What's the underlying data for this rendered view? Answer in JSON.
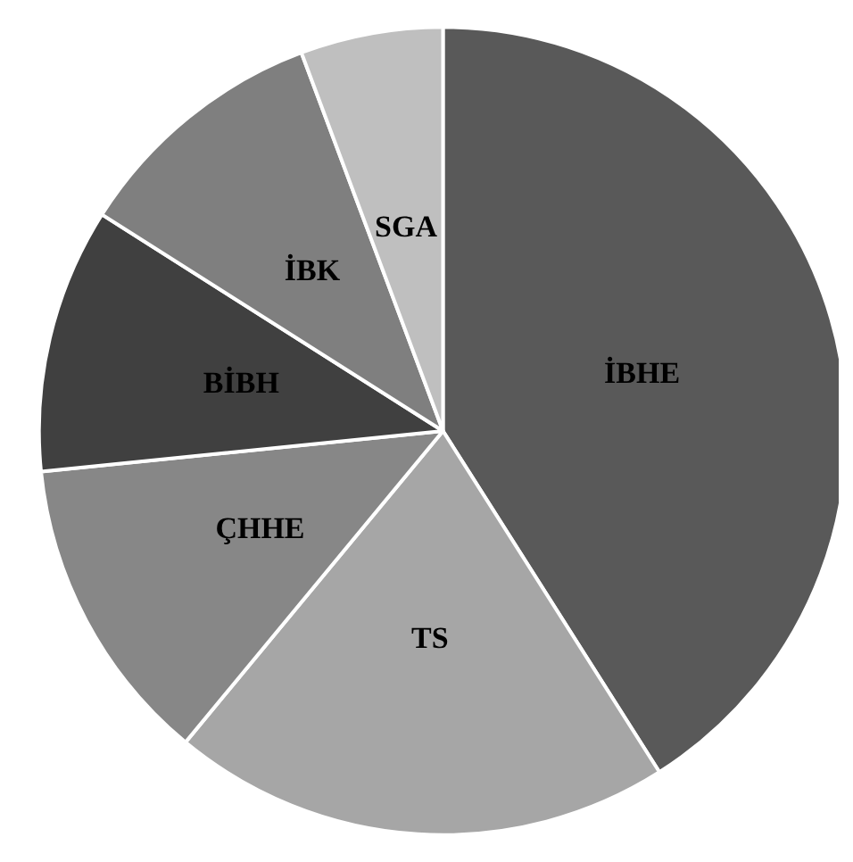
{
  "chart_data": {
    "type": "pie",
    "categories": [
      "İBHE",
      "TS",
      "ÇHHE",
      "BİBH",
      "İBK",
      "SGA"
    ],
    "values": [
      41,
      20,
      12.4,
      10.6,
      10.3,
      5.7
    ],
    "colors": [
      "#595959",
      "#a6a6a6",
      "#878787",
      "#404040",
      "#7f7f7f",
      "#bfbfbf"
    ],
    "legend": false
  }
}
